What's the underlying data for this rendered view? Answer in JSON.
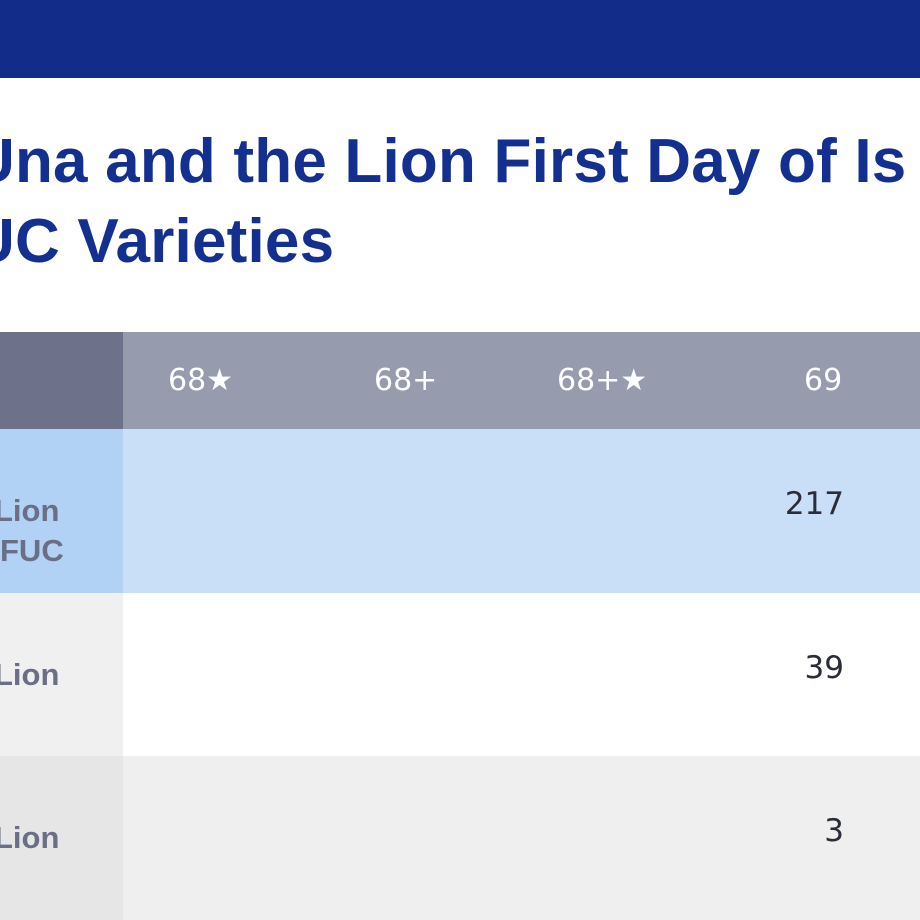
{
  "header_bar": {
    "color": "#112d89"
  },
  "title": {
    "line1": "Una and the Lion First Day of Is",
    "line2": "UC Varieties"
  },
  "table": {
    "columns": [
      "68★",
      "68+",
      "68+★",
      "69"
    ],
    "rows": [
      {
        "label": "Lion\nFUC",
        "values": [
          "",
          "",
          "",
          "217"
        ]
      },
      {
        "label": "Lion",
        "values": [
          "",
          "",
          "",
          "39"
        ]
      },
      {
        "label": "Lion",
        "values": [
          "",
          "",
          "",
          "3"
        ]
      }
    ]
  }
}
